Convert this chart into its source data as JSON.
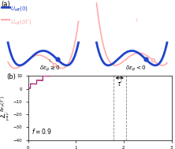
{
  "fig_width": 2.22,
  "fig_height": 1.89,
  "dpi": 100,
  "panel_a": {
    "label": "(a)",
    "blue_color": "#2244cc",
    "red_color": "#ffaaaa",
    "legend_blue": "U_{eff}(0)",
    "legend_red": "U_{eff}(delta t prime)",
    "left_label": "delta epsilon_p >= 0",
    "right_label": "delta epsilon_p < 0"
  },
  "panel_b": {
    "label": "(b)",
    "curve_color": "#aa2277",
    "ylim": [
      -40,
      10
    ],
    "xlim": [
      0,
      3
    ],
    "f_label": "f = 0.9",
    "dashed_x1": 1.78,
    "dashed_x2": 2.05,
    "arrow_color": "#228822",
    "red_marker_color": "#cc2222",
    "pink_color": "#ffaaaa",
    "green_color": "#228822"
  }
}
